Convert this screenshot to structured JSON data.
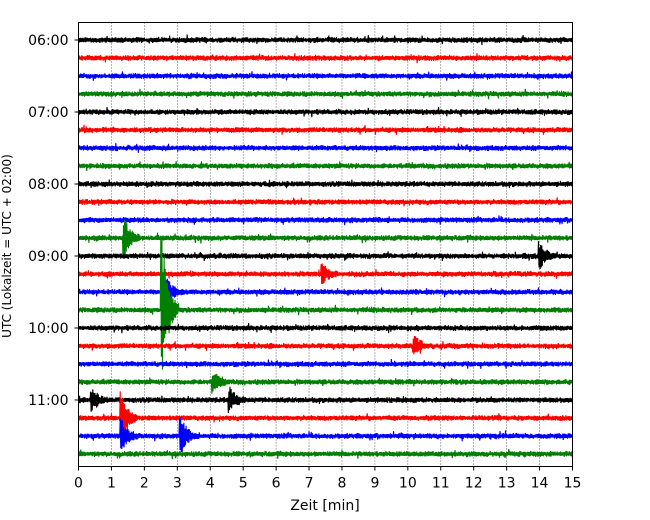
{
  "chart_data": {
    "type": "line",
    "title": "",
    "xlabel": "Zeit  [min]",
    "ylabel": "UTC (Lokalzeit = UTC + 02:00)",
    "xlim": [
      0,
      15
    ],
    "x_ticks": [
      "0",
      "1",
      "2",
      "3",
      "4",
      "5",
      "6",
      "7",
      "8",
      "9",
      "10",
      "11",
      "12",
      "13",
      "14",
      "15"
    ],
    "y_ticks": [
      "06:00",
      "07:00",
      "08:00",
      "09:00",
      "10:00",
      "11:00"
    ],
    "y_tick_rows": [
      0,
      4,
      8,
      12,
      16,
      20
    ],
    "grid": "vertical dotted",
    "row_interval_min": 15,
    "trace_colors": [
      "#000000",
      "#ff0000",
      "#0000ff",
      "#008000"
    ],
    "rows": [
      {
        "start": "06:00",
        "color": "#000000"
      },
      {
        "start": "06:15",
        "color": "#ff0000"
      },
      {
        "start": "06:30",
        "color": "#0000ff"
      },
      {
        "start": "06:45",
        "color": "#008000"
      },
      {
        "start": "07:00",
        "color": "#000000"
      },
      {
        "start": "07:15",
        "color": "#ff0000"
      },
      {
        "start": "07:30",
        "color": "#0000ff"
      },
      {
        "start": "07:45",
        "color": "#008000"
      },
      {
        "start": "08:00",
        "color": "#000000"
      },
      {
        "start": "08:15",
        "color": "#ff0000"
      },
      {
        "start": "08:30",
        "color": "#0000ff"
      },
      {
        "start": "08:45",
        "color": "#008000",
        "events": [
          {
            "t": 1.4,
            "amp": 1.2
          }
        ]
      },
      {
        "start": "09:00",
        "color": "#000000",
        "events": [
          {
            "t": 14.0,
            "amp": 0.8
          }
        ]
      },
      {
        "start": "09:15",
        "color": "#ff0000",
        "events": [
          {
            "t": 7.4,
            "amp": 0.6
          }
        ]
      },
      {
        "start": "09:30",
        "color": "#0000ff",
        "events": [
          {
            "t": 2.7,
            "amp": 0.7
          }
        ]
      },
      {
        "start": "09:45",
        "color": "#008000",
        "events": [
          {
            "t": 2.55,
            "amp": 4.5
          }
        ]
      },
      {
        "start": "10:00",
        "color": "#000000"
      },
      {
        "start": "10:15",
        "color": "#ff0000",
        "events": [
          {
            "t": 10.2,
            "amp": 0.6
          }
        ]
      },
      {
        "start": "10:30",
        "color": "#0000ff"
      },
      {
        "start": "10:45",
        "color": "#008000",
        "events": [
          {
            "t": 4.1,
            "amp": 0.6
          }
        ]
      },
      {
        "start": "11:00",
        "color": "#000000",
        "events": [
          {
            "t": 4.6,
            "amp": 0.7
          },
          {
            "t": 0.4,
            "amp": 0.7
          }
        ]
      },
      {
        "start": "11:15",
        "color": "#ff0000",
        "events": [
          {
            "t": 1.3,
            "amp": 1.6
          }
        ]
      },
      {
        "start": "11:30",
        "color": "#0000ff",
        "events": [
          {
            "t": 1.3,
            "amp": 1.0
          },
          {
            "t": 3.1,
            "amp": 1.2
          }
        ]
      },
      {
        "start": "11:45",
        "color": "#008000"
      }
    ]
  }
}
